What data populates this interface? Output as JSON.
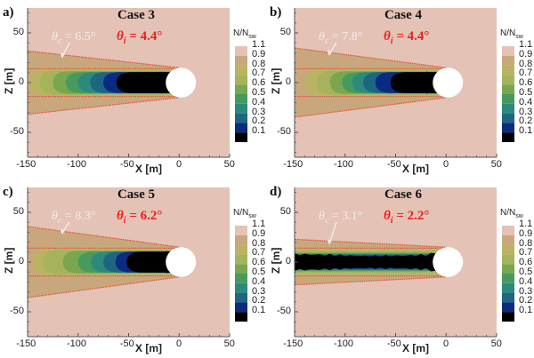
{
  "chart_data": [
    {
      "type": "heatmap",
      "panel_label": "a)",
      "title": "Case 3",
      "theta_c": "6.5°",
      "theta_i": "4.4°",
      "cone_halfwidth_at_xmin": 32,
      "wake_style": "smooth",
      "xlabel": "X [m]",
      "ylabel": "Z [m]",
      "xlim": [
        -150,
        50
      ],
      "ylim": [
        -75,
        75
      ],
      "xticks": [
        "-150",
        "-100",
        "-50",
        "0",
        "50"
      ],
      "yticks": [
        "50",
        "0",
        "-50"
      ]
    },
    {
      "type": "heatmap",
      "panel_label": "b)",
      "title": "Case 4",
      "theta_c": "7.8°",
      "theta_i": "4.4°",
      "cone_halfwidth_at_xmin": 35,
      "wake_style": "smooth",
      "xlabel": "X [m]",
      "ylabel": "Z [m]",
      "xlim": [
        -150,
        50
      ],
      "ylim": [
        -75,
        75
      ],
      "xticks": [
        "-150",
        "-100",
        "-50",
        "0",
        "50"
      ],
      "yticks": [
        "50",
        "0",
        "-50"
      ]
    },
    {
      "type": "heatmap",
      "panel_label": "c)",
      "title": "Case 5",
      "theta_c": "8.3°",
      "theta_i": "6.2°",
      "cone_halfwidth_at_xmin": 36,
      "wake_style": "smooth-short",
      "xlabel": "X [m]",
      "ylabel": "Z [m]",
      "xlim": [
        -150,
        50
      ],
      "ylim": [
        -75,
        75
      ],
      "xticks": [
        "-150",
        "-100",
        "-50",
        "0",
        "50"
      ],
      "yticks": [
        "50",
        "0",
        "-50"
      ]
    },
    {
      "type": "heatmap",
      "panel_label": "d)",
      "title": "Case 6",
      "theta_c": "3.1°",
      "theta_i": "2.2°",
      "cone_halfwidth_at_xmin": 23,
      "wake_style": "narrow",
      "xlabel": "X [m]",
      "ylabel": "Z [m]",
      "xlim": [
        -150,
        50
      ],
      "ylim": [
        -75,
        75
      ],
      "xticks": [
        "-150",
        "-100",
        "-50",
        "0",
        "50"
      ],
      "yticks": [
        "50",
        "0",
        "-50"
      ]
    }
  ],
  "colorbar": {
    "title_main": "N/N",
    "title_sub": "sw",
    "levels": [
      "1.1",
      "0.9",
      "0.8",
      "0.7",
      "0.6",
      "0.5",
      "0.4",
      "0.3",
      "0.2",
      "0.1"
    ],
    "colors": [
      "#ffffff",
      "#e4c2b5",
      "#c9a77c",
      "#bab462",
      "#a6b35c",
      "#7aa64f",
      "#479a5e",
      "#2c8a7c",
      "#1d6682",
      "#0b2a82",
      "#000000"
    ]
  },
  "theme": {
    "background": "#e4c2b5",
    "cone_line": "#e0523a",
    "disc": "#ffffff"
  }
}
